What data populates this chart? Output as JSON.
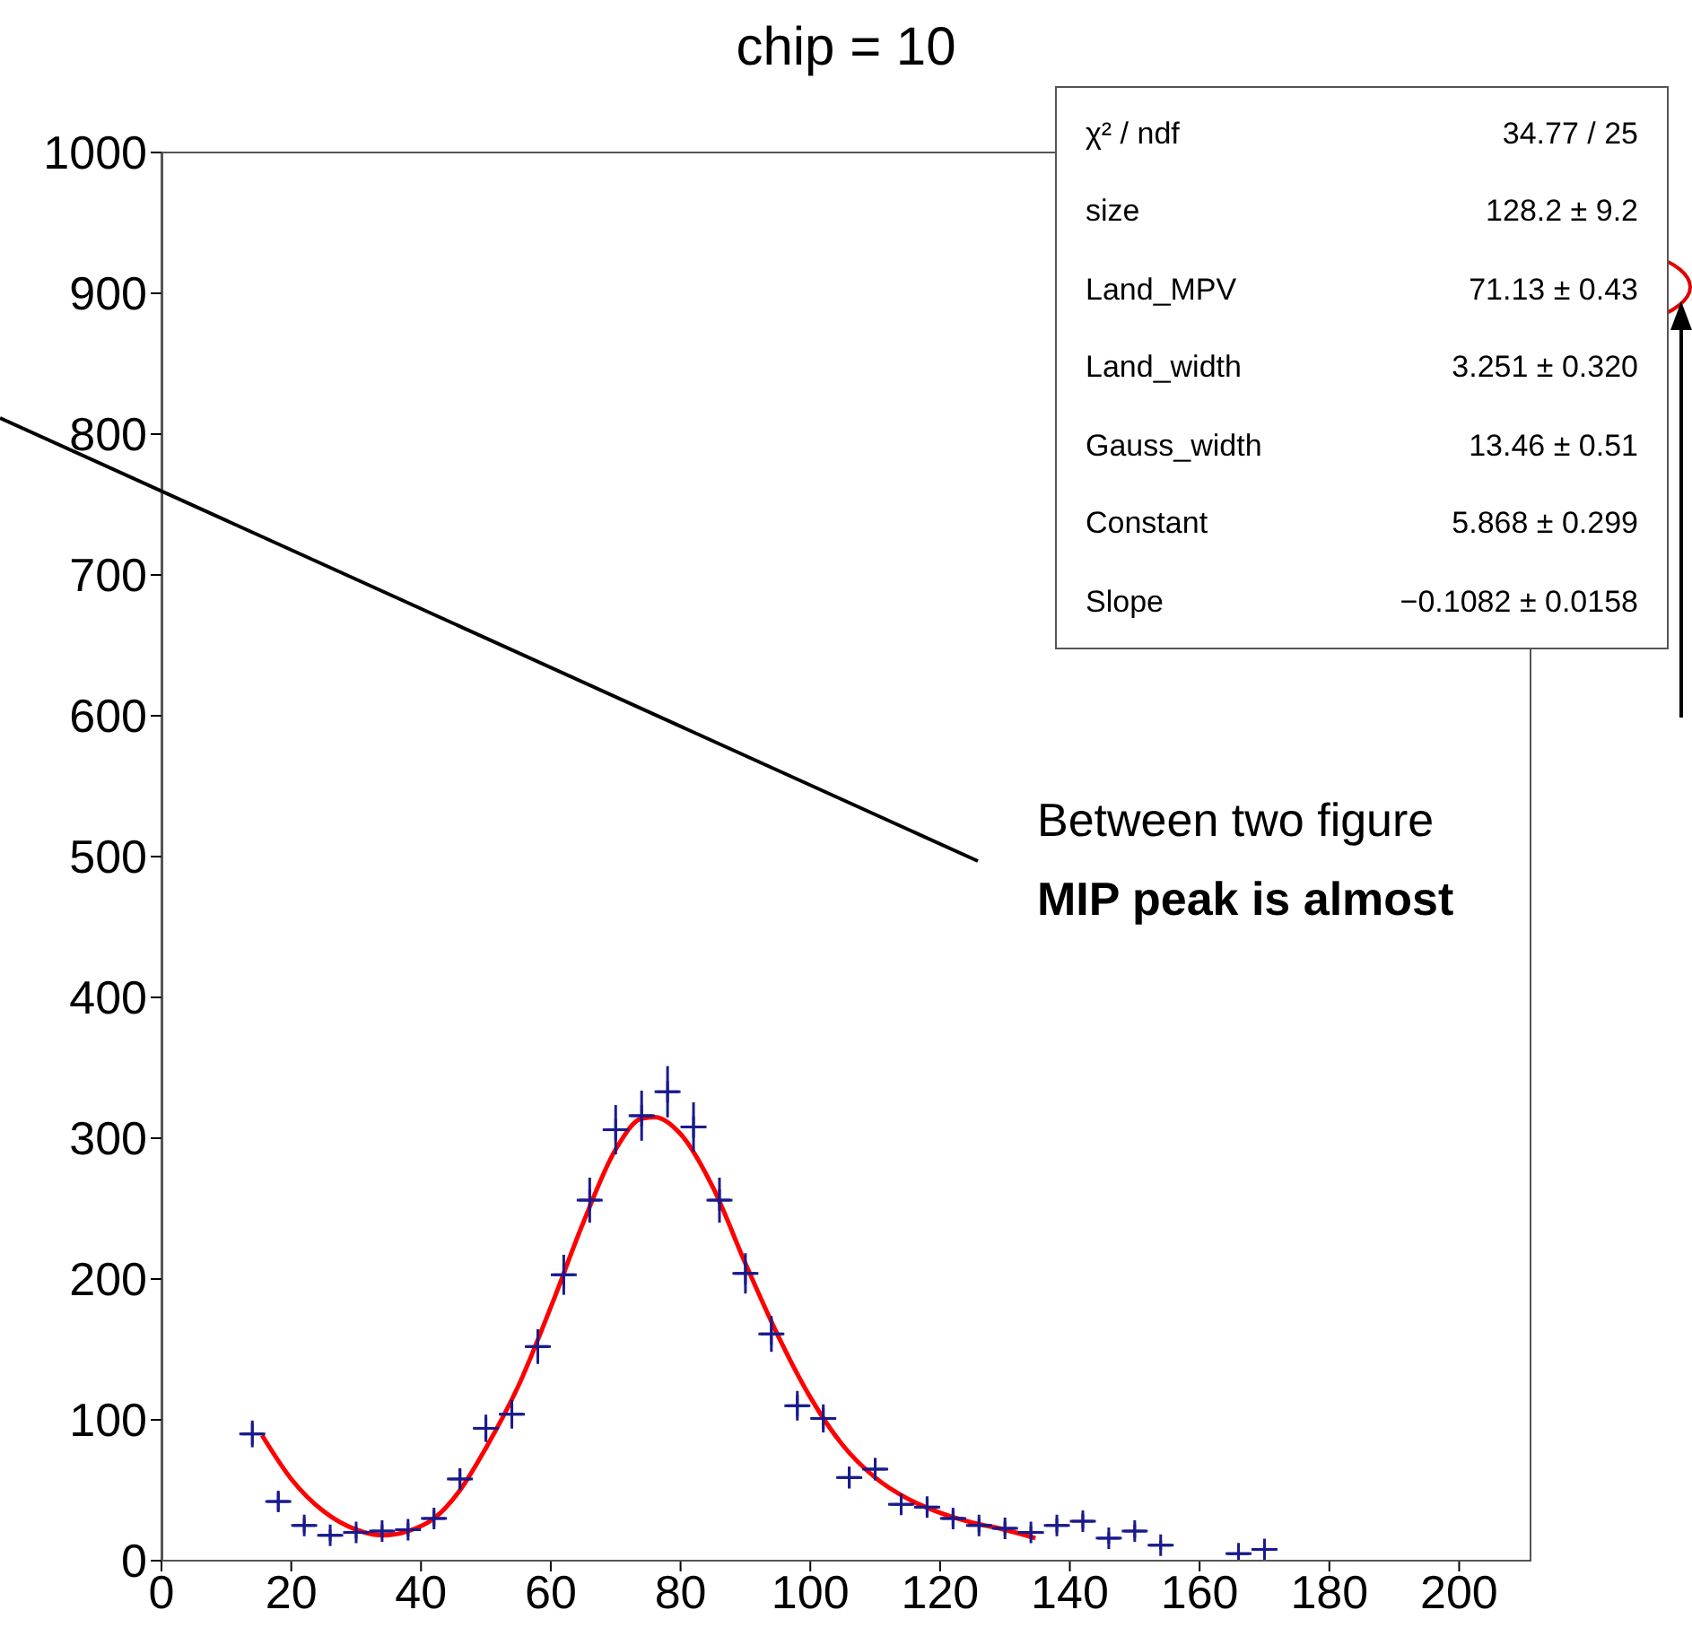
{
  "chart_data": {
    "type": "scatter",
    "title": "chip = 10",
    "xlim": [
      0,
      211
    ],
    "xticks": [
      0,
      20,
      40,
      60,
      80,
      100,
      120,
      140,
      160,
      180,
      200
    ],
    "ylim": [
      0,
      1000
    ],
    "yticks": [
      0,
      100,
      200,
      300,
      400,
      500,
      600,
      700,
      800,
      900,
      1000
    ],
    "series": [
      {
        "type": "scatter",
        "color": "#1a1a8c",
        "marker": "cross",
        "x": [
          14,
          18,
          22,
          26,
          30,
          34,
          38,
          42,
          46,
          50,
          54,
          58,
          62,
          66,
          70,
          74,
          78,
          82,
          86,
          90,
          94,
          98,
          102,
          106,
          110,
          114,
          118,
          122,
          126,
          130,
          134,
          138,
          142,
          146,
          150,
          154,
          166,
          170
        ],
        "values": [
          90,
          42,
          25,
          18,
          20,
          21,
          22,
          30,
          58,
          94,
          104,
          152,
          203,
          256,
          306,
          316,
          333,
          308,
          256,
          204,
          161,
          110,
          101,
          59,
          65,
          40,
          38,
          30,
          25,
          23,
          20,
          25,
          28,
          16,
          21,
          11,
          5,
          8
        ],
        "errors": [
          9.5,
          6.5,
          5,
          4.2,
          4.5,
          4.6,
          4.7,
          5.5,
          7.6,
          9.7,
          10.2,
          12.3,
          14.2,
          16,
          17.5,
          17.8,
          18.2,
          17.5,
          16,
          14.3,
          12.7,
          10.5,
          10,
          7.7,
          8,
          6.3,
          6.2,
          5.5,
          5,
          4.8,
          4.5,
          5,
          5.3,
          4,
          4.6,
          3.3,
          2.2,
          2.8
        ],
        "xerrors": [
          2,
          2,
          2,
          2,
          2,
          2,
          2,
          2,
          2,
          2,
          2,
          2,
          2,
          2,
          2,
          2,
          2,
          2,
          2,
          2,
          2,
          2,
          2,
          2,
          2,
          2,
          2,
          2,
          2,
          2,
          2,
          2,
          2,
          2,
          2,
          2,
          2,
          2
        ]
      },
      {
        "type": "line",
        "color": "#ff0000",
        "line_style": "solid",
        "x": [
          15.5,
          20,
          25,
          30,
          34,
          38,
          42,
          46,
          50,
          55,
          60,
          65,
          70,
          74,
          76,
          80,
          85,
          90,
          95,
          100,
          105,
          110,
          115,
          120,
          125,
          130,
          134.7
        ],
        "values": [
          89,
          58,
          35,
          22,
          18,
          21,
          30,
          50,
          80,
          124,
          180,
          240,
          292,
          314,
          315,
          303,
          265,
          211,
          160,
          116,
          82,
          59,
          44,
          34,
          27,
          22,
          16
        ]
      }
    ],
    "annotations": [
      "χ² / ndf",
      "34.77 / 25",
      "size",
      "128.2 ± 9.2",
      "Land_MPV",
      "71.13 ± 0.43",
      "Land_width",
      "3.251 ± 0.320",
      "Gauss_width",
      "13.46 ± 0.51",
      "Constant",
      "5.868 ± 0.299",
      "Slope",
      "−0.1082 ± 0.0158",
      "Between two figure",
      "MIP peak is almost"
    ]
  }
}
